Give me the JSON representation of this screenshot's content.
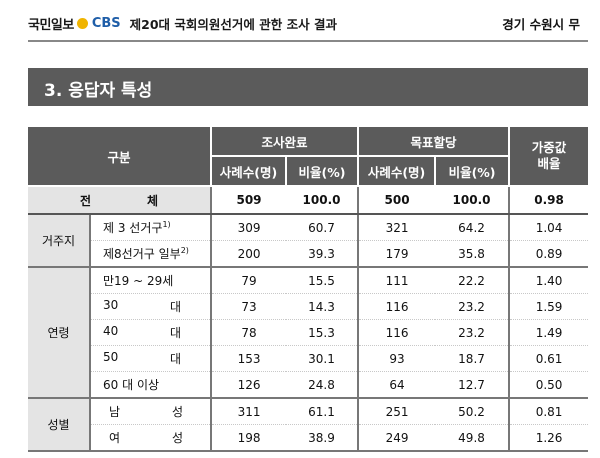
{
  "header": {
    "brand1": "국민일보",
    "brand2": "CBS",
    "subtitle": "제20대 국회의원선거에 관한 조사 결과",
    "region": "경기 수원시 무"
  },
  "section_title": "3. 응답자 특성",
  "table": {
    "col_group": "구분",
    "survey_done": "조사완료",
    "target_alloc": "목표할당",
    "weight": "가중값\n배율",
    "cases": "사례수(명)",
    "ratio": "비율(%)",
    "total": {
      "label1": "전",
      "label2": "체",
      "v": [
        "509",
        "100.0",
        "500",
        "100.0",
        "0.98"
      ]
    },
    "residence": {
      "group": "거주지",
      "rows": [
        {
          "label": "제 3 선거구",
          "note": "1)",
          "v": [
            "309",
            "60.7",
            "321",
            "64.2",
            "1.04"
          ]
        },
        {
          "label": "제8선거구 일부",
          "note": "2)",
          "v": [
            "200",
            "39.3",
            "179",
            "35.8",
            "0.89"
          ]
        }
      ]
    },
    "age": {
      "group": "연령",
      "rows": [
        {
          "a": "만19 ~ 29세",
          "b": "",
          "v": [
            "79",
            "15.5",
            "111",
            "22.2",
            "1.40"
          ]
        },
        {
          "a": "30",
          "b": "대",
          "v": [
            "73",
            "14.3",
            "116",
            "23.2",
            "1.59"
          ]
        },
        {
          "a": "40",
          "b": "대",
          "v": [
            "78",
            "15.3",
            "116",
            "23.2",
            "1.49"
          ]
        },
        {
          "a": "50",
          "b": "대",
          "v": [
            "153",
            "30.1",
            "93",
            "18.7",
            "0.61"
          ]
        },
        {
          "a": "60 대 이상",
          "b": "",
          "v": [
            "126",
            "24.8",
            "64",
            "12.7",
            "0.50"
          ]
        }
      ]
    },
    "gender": {
      "group": "성별",
      "rows": [
        {
          "a": "남",
          "b": "성",
          "v": [
            "311",
            "61.1",
            "251",
            "50.2",
            "0.81"
          ]
        },
        {
          "a": "여",
          "b": "성",
          "v": [
            "198",
            "38.9",
            "249",
            "49.8",
            "1.26"
          ]
        }
      ]
    }
  }
}
